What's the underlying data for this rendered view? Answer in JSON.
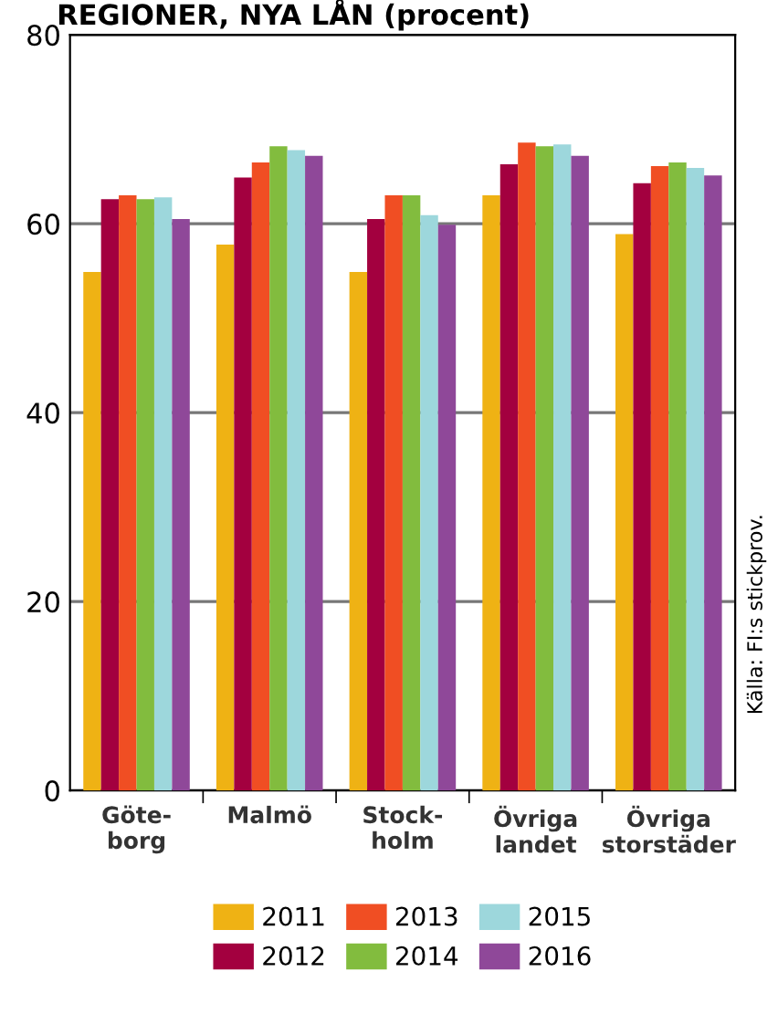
{
  "chart_data": {
    "type": "bar",
    "title": "REGIONER, NYA LÅN (procent)",
    "categories": [
      "Göte-\nborg",
      "Malmö",
      "Stock-\nholm",
      "Övriga\nlandet",
      "Övriga\nstorstäder"
    ],
    "series": [
      {
        "name": "2011",
        "color": "#efb214",
        "values": [
          54.9,
          57.8,
          54.9,
          63.0,
          58.9
        ]
      },
      {
        "name": "2012",
        "color": "#a3003f",
        "values": [
          62.6,
          64.9,
          60.5,
          66.3,
          64.3
        ]
      },
      {
        "name": "2013",
        "color": "#f04e23",
        "values": [
          63.0,
          66.5,
          63.0,
          68.6,
          66.1
        ]
      },
      {
        "name": "2014",
        "color": "#82bc3e",
        "values": [
          62.6,
          68.2,
          63.0,
          68.2,
          66.5
        ]
      },
      {
        "name": "2015",
        "color": "#9dd7dc",
        "values": [
          62.8,
          67.8,
          60.9,
          68.4,
          65.9
        ]
      },
      {
        "name": "2016",
        "color": "#8f4899",
        "values": [
          60.5,
          67.2,
          59.9,
          67.2,
          65.1
        ]
      }
    ],
    "ylim": [
      0,
      80
    ],
    "yticks": [
      0,
      20,
      40,
      60,
      80
    ],
    "grid": "y",
    "legend": "bottom",
    "annotations": [
      "Källa: FI:s stickprov."
    ]
  }
}
